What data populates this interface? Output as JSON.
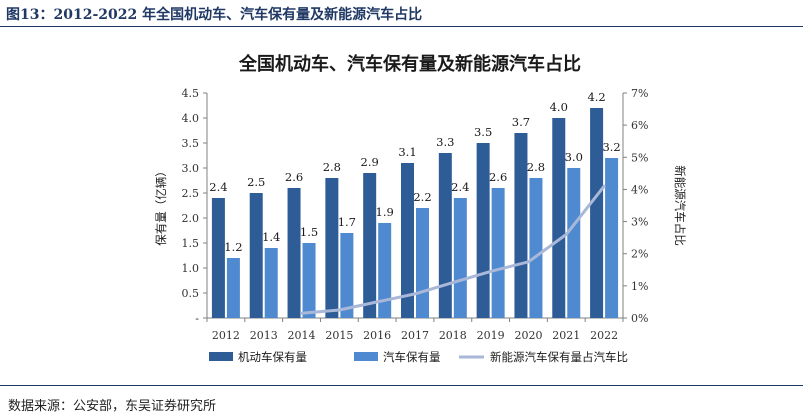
{
  "page": {
    "caption": "图13：2012-2022 年全国机动车、汽车保有量及新能源汽车占比",
    "source": "数据来源：公安部，东吴证券研究所"
  },
  "colors": {
    "vehicles": "#2e5c96",
    "cars": "#4f8ad0",
    "nev_share": "#a9b8d8",
    "caption": "#1f3864"
  },
  "chart_data": {
    "type": "bar",
    "title": "全国机动车、汽车保有量及新能源汽车占比",
    "categories": [
      "2012",
      "2013",
      "2014",
      "2015",
      "2016",
      "2017",
      "2018",
      "2019",
      "2020",
      "2021",
      "2022"
    ],
    "series": [
      {
        "name": "机动车保有量",
        "type": "bar",
        "axis": "left",
        "values": [
          2.4,
          2.5,
          2.6,
          2.8,
          2.9,
          3.1,
          3.3,
          3.5,
          3.7,
          4.0,
          4.2
        ],
        "labels": [
          "2.4",
          "2.5",
          "2.6",
          "2.8",
          "2.9",
          "3.1",
          "3.3",
          "3.5",
          "3.7",
          "4.0",
          "4.2"
        ]
      },
      {
        "name": "汽车保有量",
        "type": "bar",
        "axis": "left",
        "values": [
          1.2,
          1.4,
          1.5,
          1.7,
          1.9,
          2.2,
          2.4,
          2.6,
          2.8,
          3.0,
          3.2
        ],
        "labels": [
          "1.2",
          "1.4",
          "1.5",
          "1.7",
          "1.9",
          "2.2",
          "2.4",
          "2.6",
          "2.8",
          "3.0",
          "3.2"
        ]
      },
      {
        "name": "新能源汽车保有量占汽车比",
        "type": "line",
        "axis": "right",
        "values": [
          null,
          null,
          0.15,
          0.25,
          0.5,
          0.75,
          1.1,
          1.45,
          1.75,
          2.6,
          4.1
        ]
      }
    ],
    "ylabel": "保有量（亿辆）",
    "ylim": [
      0,
      4.5
    ],
    "yticks": [
      "-",
      "0.5",
      "1.0",
      "1.5",
      "2.0",
      "2.5",
      "3.0",
      "3.5",
      "4.0",
      "4.5"
    ],
    "y2label": "新能源汽车占比",
    "y2lim": [
      0,
      7
    ],
    "y2ticks": [
      "0%",
      "1%",
      "2%",
      "3%",
      "4%",
      "5%",
      "6%",
      "7%"
    ],
    "grid": false,
    "legend": "bottom"
  }
}
